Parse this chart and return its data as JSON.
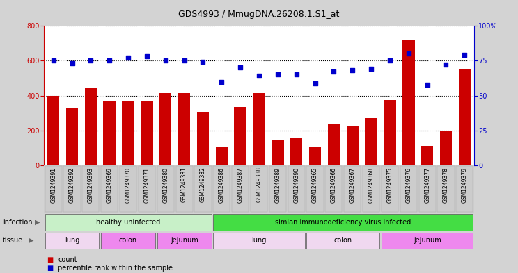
{
  "title": "GDS4993 / MmugDNA.26208.1.S1_at",
  "samples": [
    "GSM1249391",
    "GSM1249392",
    "GSM1249393",
    "GSM1249369",
    "GSM1249370",
    "GSM1249371",
    "GSM1249380",
    "GSM1249381",
    "GSM1249382",
    "GSM1249386",
    "GSM1249387",
    "GSM1249388",
    "GSM1249389",
    "GSM1249390",
    "GSM1249365",
    "GSM1249366",
    "GSM1249367",
    "GSM1249368",
    "GSM1249375",
    "GSM1249376",
    "GSM1249377",
    "GSM1249378",
    "GSM1249379"
  ],
  "counts": [
    400,
    330,
    445,
    370,
    365,
    370,
    415,
    415,
    305,
    105,
    335,
    415,
    148,
    160,
    105,
    235,
    228,
    272,
    375,
    720,
    112,
    200,
    555
  ],
  "percentiles": [
    75,
    73,
    75,
    75,
    77,
    78,
    75,
    75,
    74,
    60,
    70,
    64,
    65,
    65,
    59,
    67,
    68,
    69,
    75,
    80,
    58,
    72,
    79
  ],
  "bar_color": "#cc0000",
  "dot_color": "#0000cc",
  "left_ylim": [
    0,
    800
  ],
  "right_ylim": [
    0,
    100
  ],
  "left_yticks": [
    0,
    200,
    400,
    600,
    800
  ],
  "right_yticks": [
    0,
    25,
    50,
    75,
    100
  ],
  "right_yticklabels": [
    "0",
    "25",
    "50",
    "75",
    "100%"
  ],
  "infection_groups": [
    {
      "label": "healthy uninfected",
      "start": 0,
      "end": 8,
      "color": "#c8f0c8"
    },
    {
      "label": "simian immunodeficiency virus infected",
      "start": 9,
      "end": 22,
      "color": "#44dd44"
    }
  ],
  "tissue_groups": [
    {
      "label": "lung",
      "start": 0,
      "end": 2,
      "color": "#f0d8f0"
    },
    {
      "label": "colon",
      "start": 3,
      "end": 5,
      "color": "#ee88ee"
    },
    {
      "label": "jejunum",
      "start": 6,
      "end": 8,
      "color": "#ee88ee"
    },
    {
      "label": "lung",
      "start": 9,
      "end": 13,
      "color": "#f0d8f0"
    },
    {
      "label": "colon",
      "start": 14,
      "end": 17,
      "color": "#f0d8f0"
    },
    {
      "label": "jejunum",
      "start": 18,
      "end": 22,
      "color": "#ee88ee"
    }
  ],
  "bg_color": "#d3d3d3",
  "plot_bg": "#ffffff",
  "xtick_bg": "#cccccc"
}
